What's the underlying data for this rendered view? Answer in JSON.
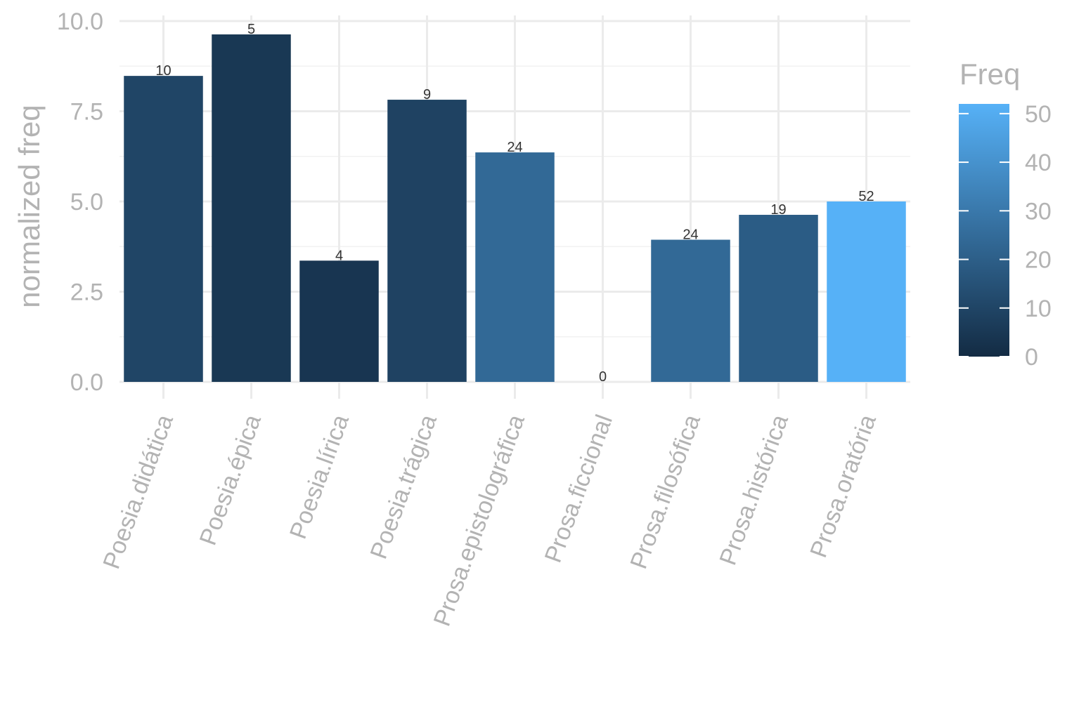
{
  "chart_data": {
    "type": "bar",
    "ylabel": "normalized freq",
    "ylim": [
      0,
      10
    ],
    "y_ticks": [
      "0.0",
      "2.5",
      "5.0",
      "7.5",
      "10.0"
    ],
    "categories": [
      "Poesia.didática",
      "Poesia.épica",
      "Poesia.lírica",
      "Poesia.trágica",
      "Prosa.epistolográfica",
      "Prosa.ficcional",
      "Prosa.filosófica",
      "Prosa.histórica",
      "Prosa.oratória"
    ],
    "values": [
      8.48,
      9.63,
      3.36,
      7.82,
      6.36,
      0,
      3.94,
      4.63,
      5.0
    ],
    "labels": [
      "10",
      "5",
      "4",
      "9",
      "24",
      "0",
      "24",
      "19",
      "52"
    ],
    "fill_freq": [
      10,
      5,
      4,
      9,
      24,
      0,
      24,
      19,
      52
    ],
    "grid": true,
    "legend": {
      "title": "Freq",
      "type": "colorbar",
      "range": [
        0,
        52
      ],
      "ticks": [
        "0",
        "10",
        "20",
        "30",
        "40",
        "50"
      ],
      "color_low": "#132b43",
      "color_high": "#56b1f7",
      "placement": "right"
    }
  }
}
